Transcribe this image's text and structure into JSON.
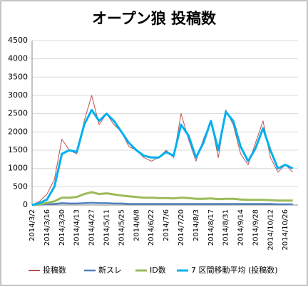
{
  "chart_data": {
    "type": "line",
    "title": "オープン狼 投稿数",
    "categories": [
      "2014/3/2",
      null,
      "2014/3/16",
      null,
      "2014/3/30",
      null,
      "2014/4/13",
      null,
      "2014/4/27",
      null,
      "2014/5/11",
      null,
      "2014/5/25",
      null,
      "2014/6/8",
      null,
      "2014/6/22",
      null,
      "2014/7/6",
      null,
      "2014/7/20",
      null,
      "2014/8/3",
      null,
      "2014/8/17",
      null,
      "2014/8/31",
      null,
      "2014/9/14",
      null,
      "2014/9/28",
      null,
      "2014/10/12",
      null,
      "2014/10/26",
      null
    ],
    "series": [
      {
        "name": "投稿数",
        "color": "#c0504d",
        "width": 1,
        "values": [
          0,
          100,
          300,
          700,
          1800,
          1500,
          1400,
          2300,
          3000,
          2200,
          2500,
          2200,
          2000,
          1600,
          1500,
          1300,
          1200,
          1300,
          1500,
          1300,
          2500,
          1800,
          1200,
          1800,
          2300,
          1300,
          2600,
          2200,
          1400,
          1100,
          1700,
          2300,
          1300,
          900,
          1100,
          900
        ]
      },
      {
        "name": "新スレ",
        "color": "#4f81bd",
        "width": 2.5,
        "values": [
          0,
          10,
          20,
          30,
          50,
          40,
          40,
          50,
          60,
          50,
          50,
          40,
          40,
          30,
          30,
          30,
          30,
          30,
          30,
          30,
          30,
          30,
          30,
          30,
          30,
          30,
          30,
          30,
          30,
          30,
          30,
          30,
          30,
          20,
          20,
          20
        ]
      },
      {
        "name": "ID数",
        "color": "#9bbb59",
        "width": 3,
        "values": [
          0,
          20,
          60,
          100,
          200,
          200,
          220,
          300,
          350,
          300,
          320,
          290,
          260,
          240,
          220,
          200,
          200,
          190,
          190,
          180,
          200,
          190,
          170,
          170,
          180,
          160,
          170,
          170,
          150,
          140,
          140,
          140,
          130,
          120,
          120,
          120
        ]
      },
      {
        "name": "7 区間移動平均 (投稿数)",
        "color": "#00b0f0",
        "width": 3,
        "values": [
          0,
          50,
          150,
          500,
          1400,
          1500,
          1450,
          2200,
          2600,
          2300,
          2500,
          2300,
          2000,
          1700,
          1500,
          1350,
          1300,
          1300,
          1450,
          1350,
          2200,
          1900,
          1300,
          1700,
          2300,
          1500,
          2550,
          2300,
          1600,
          1200,
          1550,
          2100,
          1500,
          1000,
          1100,
          1000
        ]
      }
    ],
    "ylim": [
      0,
      4500
    ],
    "yticks": [
      0,
      500,
      1000,
      1500,
      2000,
      2500,
      3000,
      3500,
      4000,
      4500
    ],
    "grid": true,
    "legend": "bottom"
  }
}
